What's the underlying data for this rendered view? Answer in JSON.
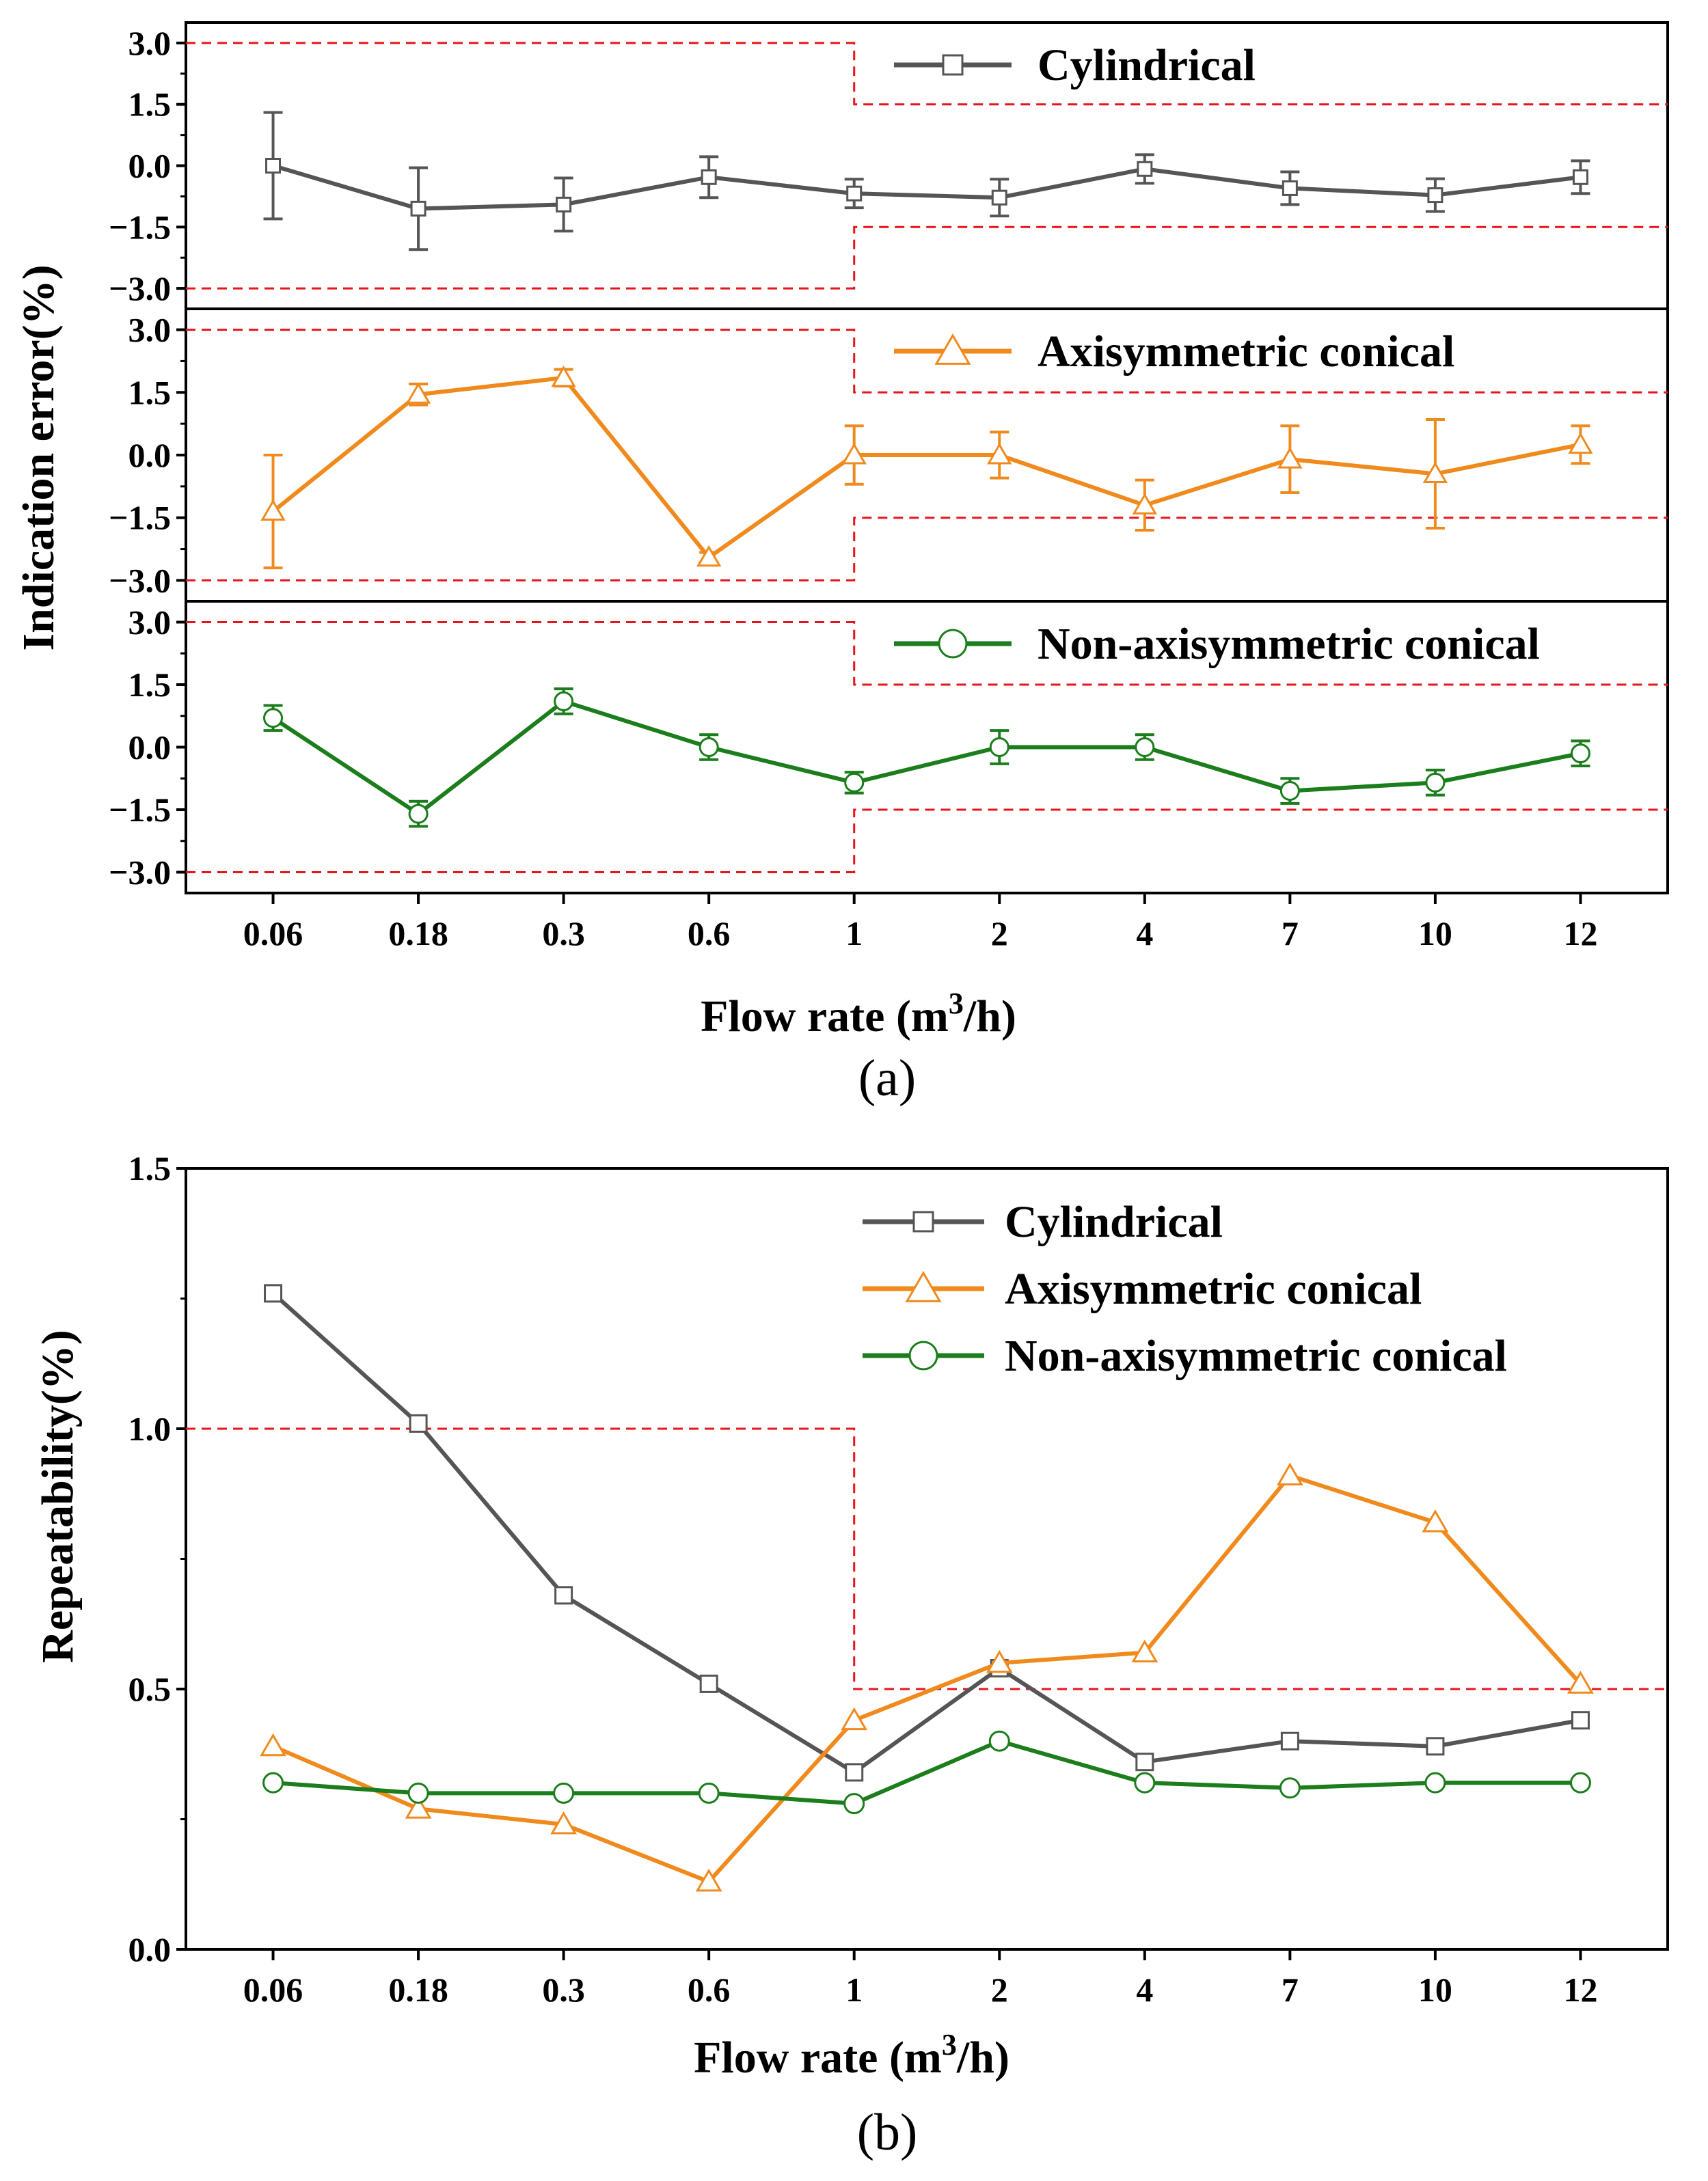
{
  "chart_data": [
    {
      "panel": "a",
      "type": "line",
      "caption": "(a)",
      "xlabel": "Flow rate (m",
      "xlabel_sup": "3",
      "xlabel_tail": "/h)",
      "ylabel": "Indication error(%)",
      "categories": [
        "0.06",
        "0.18",
        "0.3",
        "0.6",
        "1",
        "2",
        "4",
        "7",
        "10",
        "12"
      ],
      "ylim": [
        -3.5,
        3.5
      ],
      "yticks": [
        "3.0",
        "1.5",
        "0.0",
        "-1.5",
        "-3.0"
      ],
      "ytick_values": [
        3.0,
        1.5,
        0.0,
        -1.5,
        -3.0
      ],
      "limits": {
        "low_flow": 3.0,
        "high_flow": 1.5,
        "boundary_category": "1",
        "style": "dashed",
        "color": "#e8141b"
      },
      "subplots": [
        {
          "series": {
            "name": "Cylindrical",
            "marker": "square",
            "color": "#555555",
            "values": [
              0.0,
              -1.05,
              -0.95,
              -0.28,
              -0.68,
              -0.78,
              -0.08,
              -0.55,
              -0.72,
              -0.28
            ],
            "errors": [
              1.3,
              1.0,
              0.65,
              0.5,
              0.35,
              0.45,
              0.35,
              0.4,
              0.4,
              0.4
            ]
          }
        },
        {
          "series": {
            "name": "Axisymmetric conical",
            "marker": "triangle",
            "color": "#f08a1c",
            "values": [
              -1.35,
              1.45,
              1.85,
              -2.45,
              0.0,
              0.0,
              -1.2,
              -0.1,
              -0.45,
              0.25
            ],
            "errors": [
              1.35,
              0.25,
              0.2,
              0.12,
              0.7,
              0.55,
              0.6,
              0.8,
              1.3,
              0.45
            ]
          }
        },
        {
          "series": {
            "name": "Non-axisymmetric conical",
            "marker": "circle",
            "color": "#1b7d1b",
            "values": [
              0.7,
              -1.6,
              1.1,
              0.0,
              -0.85,
              0.0,
              0.0,
              -1.05,
              -0.85,
              -0.15
            ],
            "errors": [
              0.3,
              0.3,
              0.3,
              0.3,
              0.25,
              0.4,
              0.3,
              0.3,
              0.3,
              0.3
            ]
          }
        }
      ]
    },
    {
      "panel": "b",
      "type": "line",
      "caption": "(b)",
      "xlabel": "Flow rate (m",
      "xlabel_sup": "3",
      "xlabel_tail": "/h)",
      "ylabel": "Repeatability(%)",
      "categories": [
        "0.06",
        "0.18",
        "0.3",
        "0.6",
        "1",
        "2",
        "4",
        "7",
        "10",
        "12"
      ],
      "ylim": [
        0.0,
        1.5
      ],
      "yticks": [
        "1.5",
        "1.0",
        "0.5",
        "0.0"
      ],
      "ytick_values": [
        1.5,
        1.0,
        0.5,
        0.0
      ],
      "limits": {
        "low_flow": 1.0,
        "high_flow": 0.5,
        "boundary_category": "1",
        "style": "dashed",
        "color": "#e8141b"
      },
      "legend": "top-right",
      "series": [
        {
          "name": "Cylindrical",
          "marker": "square",
          "color": "#555555",
          "values": [
            1.26,
            1.01,
            0.68,
            0.51,
            0.34,
            0.54,
            0.36,
            0.4,
            0.39,
            0.44
          ]
        },
        {
          "name": "Axisymmetric conical",
          "marker": "triangle",
          "color": "#f08a1c",
          "values": [
            0.39,
            0.27,
            0.24,
            0.13,
            0.44,
            0.55,
            0.57,
            0.91,
            0.82,
            0.51
          ]
        },
        {
          "name": "Non-axisymmetric conical",
          "marker": "circle",
          "color": "#1b7d1b",
          "values": [
            0.32,
            0.3,
            0.3,
            0.3,
            0.28,
            0.4,
            0.32,
            0.31,
            0.32,
            0.32
          ]
        }
      ]
    }
  ]
}
